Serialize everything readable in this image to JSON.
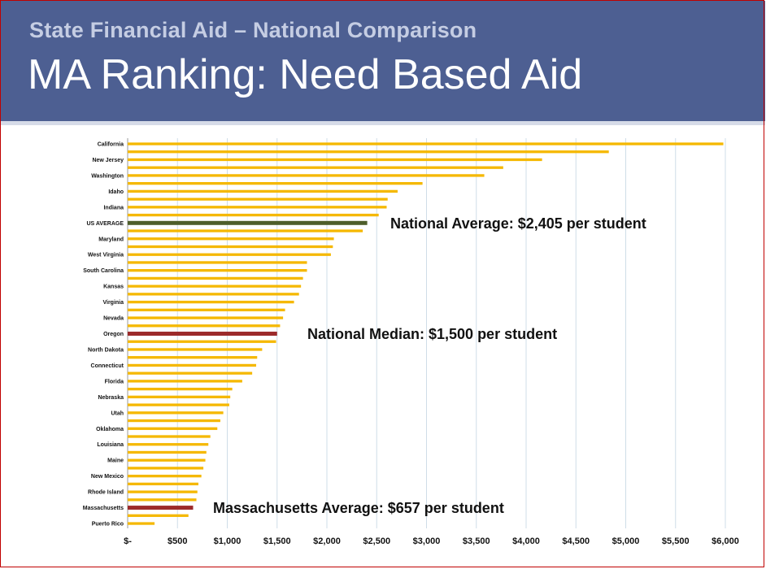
{
  "slide": {
    "subtitle": "State Financial Aid – National Comparison",
    "title": "MA Ranking: Need Based Aid"
  },
  "colors": {
    "header_bg": "#4d5f92",
    "bar_default": "#f5b800",
    "bar_us_average": "#4e5e2a",
    "bar_highlight": "#9c2a2a",
    "grid": "#cfdde8"
  },
  "chart_data": {
    "type": "bar",
    "orientation": "horizontal",
    "title": "",
    "xlabel": "",
    "ylabel": "",
    "xlim": [
      0,
      6000
    ],
    "grid": "vertical",
    "x_tick_labels": [
      "$-",
      "$500",
      "$1,000",
      "$1,500",
      "$2,000",
      "$2,500",
      "$3,000",
      "$3,500",
      "$4,000",
      "$4,500",
      "$5,000",
      "$5,500",
      "$6,000"
    ],
    "categories": [
      "California",
      "",
      "New Jersey",
      "",
      "Washington",
      "",
      "Idaho",
      "",
      "Indiana",
      "",
      "US AVERAGE",
      "",
      "Maryland",
      "",
      "West Virginia",
      "",
      "South Carolina",
      "",
      "Kansas",
      "",
      "Virginia",
      "",
      "Nevada",
      "",
      "Oregon",
      "",
      "North Dakota",
      "",
      "Connecticut",
      "",
      "Florida",
      "",
      "Nebraska",
      "",
      "Utah",
      "",
      "Oklahoma",
      "",
      "Louisiana",
      "",
      "Maine",
      "",
      "New Mexico",
      "",
      "Rhode Island",
      "",
      "Massachusetts",
      "",
      "Puerto Rico"
    ],
    "values": [
      5980,
      4830,
      4160,
      3770,
      3580,
      2960,
      2710,
      2610,
      2600,
      2520,
      2405,
      2360,
      2070,
      2060,
      2040,
      1800,
      1800,
      1760,
      1740,
      1720,
      1670,
      1580,
      1560,
      1530,
      1500,
      1490,
      1350,
      1300,
      1290,
      1250,
      1150,
      1050,
      1030,
      1020,
      960,
      930,
      900,
      830,
      810,
      790,
      780,
      760,
      740,
      710,
      700,
      690,
      657,
      610,
      270
    ],
    "bar_colors": {
      "US AVERAGE": "#4e5e2a",
      "Oregon": "#9c2a2a",
      "Massachusetts": "#9c2a2a"
    },
    "annotations": [
      {
        "text": "National Average: $2,405 per student",
        "category": "US AVERAGE"
      },
      {
        "text": "National Median: $1,500 per student",
        "category": "Oregon"
      },
      {
        "text": "Massachusetts Average: $657 per student",
        "category": "Massachusetts"
      }
    ]
  }
}
